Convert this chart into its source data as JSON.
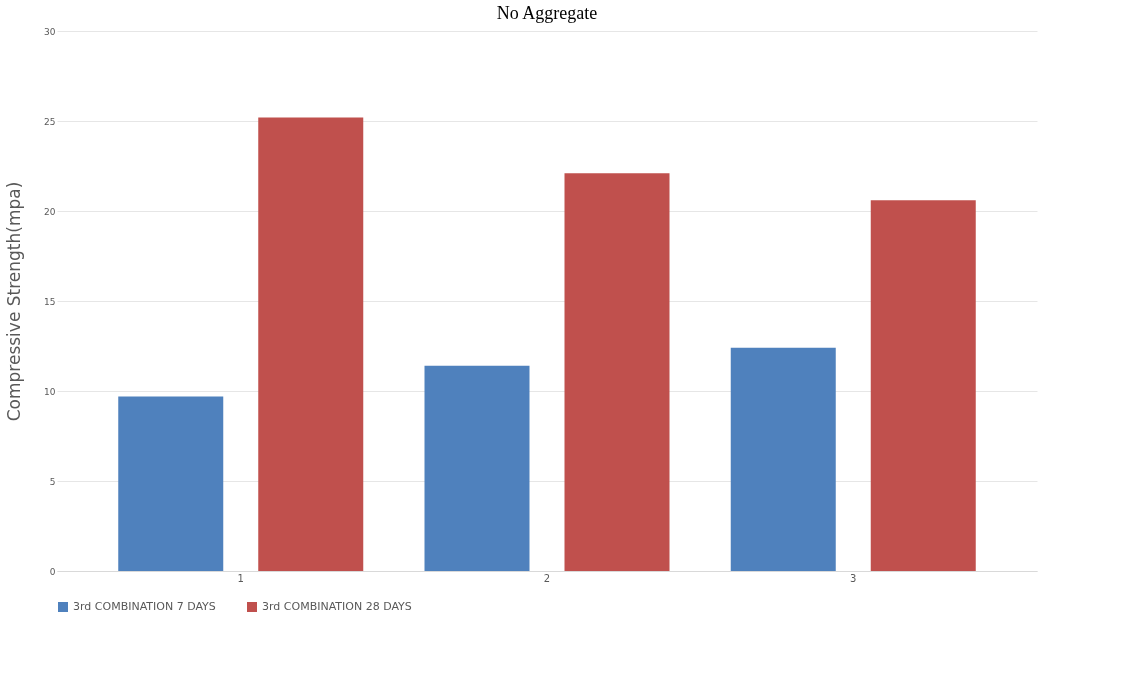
{
  "chart_data": {
    "type": "bar",
    "title": "No Aggregate",
    "ylabel": "Compressive Strength(mpa)",
    "categories": [
      "1",
      "2",
      "3"
    ],
    "series": [
      {
        "name": "3rd COMBINATION 7 DAYS",
        "color": "#4f81bd",
        "values": [
          9.7,
          11.4,
          12.4
        ]
      },
      {
        "name": "3rd COMBINATION 28 DAYS",
        "color": "#c0504d",
        "values": [
          25.2,
          22.1,
          20.6
        ]
      }
    ],
    "ylim": [
      0,
      30
    ],
    "yticks": [
      0,
      5,
      10,
      15,
      20,
      25,
      30
    ],
    "grid": "y",
    "legend": "bottom"
  }
}
